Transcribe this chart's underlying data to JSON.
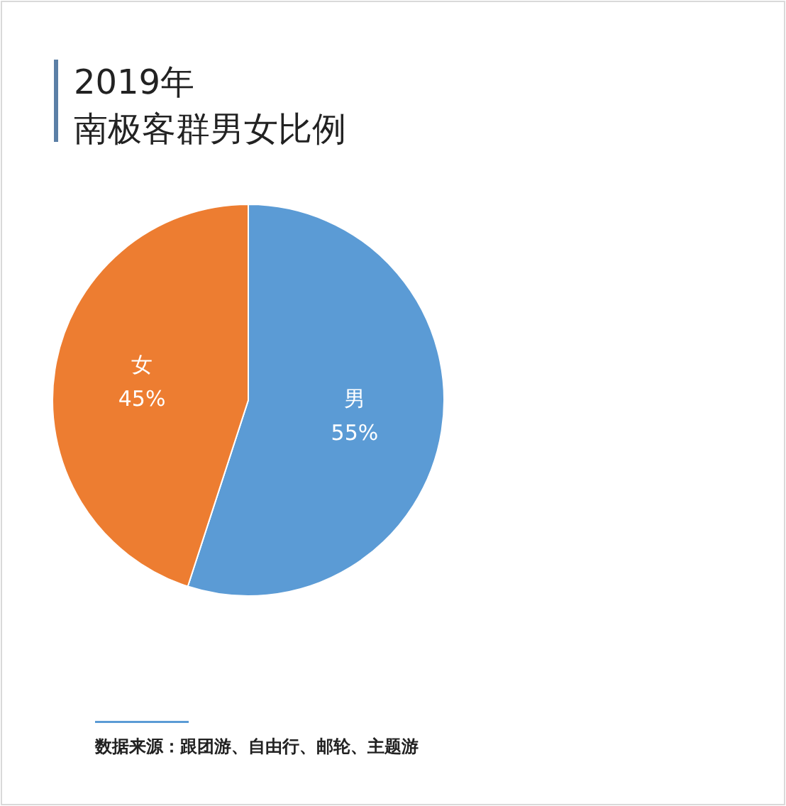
{
  "chart_data": {
    "type": "pie",
    "title": "2019年",
    "subtitle": "南极客群男女比例",
    "categories": [
      "男",
      "女"
    ],
    "values": [
      55,
      45
    ],
    "value_labels": [
      "55%",
      "45%"
    ],
    "colors": [
      "#5b9bd5",
      "#ed7d31"
    ],
    "annotations": [
      "数据来源：跟团游、自由行、邮轮、主题游"
    ]
  }
}
